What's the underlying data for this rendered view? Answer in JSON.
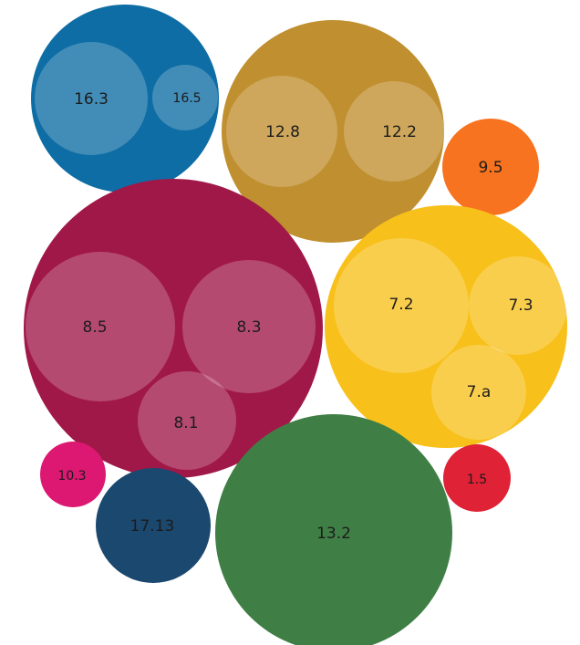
{
  "colors": {
    "blue": "#0e6da5",
    "gold": "#c08f2f",
    "orange": "#f7731f",
    "crimson": "#a01848",
    "yellow": "#f8c01a",
    "magenta": "#dd1872",
    "navy": "#1b486f",
    "green": "#3f7f45",
    "red": "#df2236",
    "inner_overlay": "rgba(255,255,255,0.22)"
  },
  "bubbles": {
    "b16": {
      "l1": "16.3",
      "l2": "16.5"
    },
    "b12": {
      "l1": "12.8",
      "l2": "12.2"
    },
    "b95": {
      "label": "9.5"
    },
    "b8": {
      "l1": "8.5",
      "l2": "8.3",
      "l3": "8.1"
    },
    "b7": {
      "l1": "7.2",
      "l2": "7.3",
      "l3": "7.a"
    },
    "b103": {
      "label": "10.3"
    },
    "b1713": {
      "label": "17.13"
    },
    "b132": {
      "label": "13.2"
    },
    "b15": {
      "label": "1.5"
    }
  }
}
